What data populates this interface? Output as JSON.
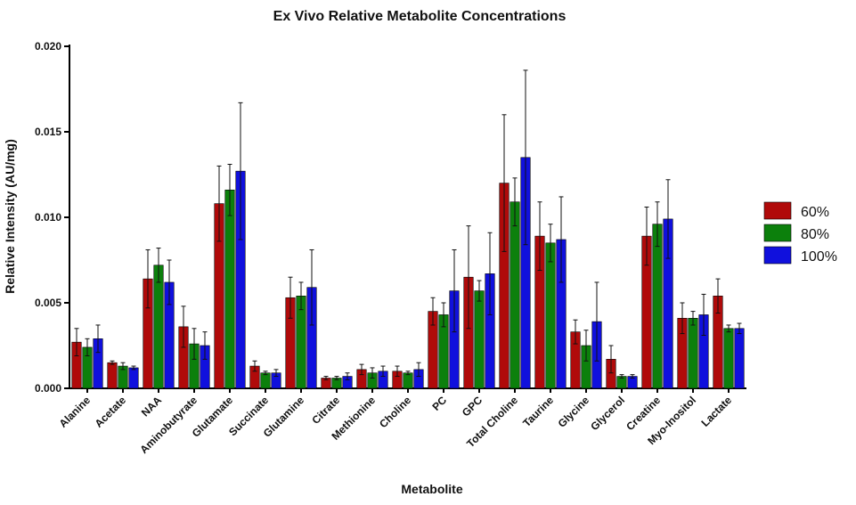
{
  "chart_data": {
    "type": "bar",
    "title": "Ex Vivo Relative Metabolite Concentrations",
    "xlabel": "Metabolite",
    "ylabel": "Relative Intensity (AU/mg)",
    "ylim": [
      0,
      0.02
    ],
    "yticks": [
      "0.000",
      "0.005",
      "0.010",
      "0.015",
      "0.020"
    ],
    "ytick_values": [
      0,
      0.005,
      0.01,
      0.015,
      0.02
    ],
    "categories": [
      "Alanine",
      "Acetate",
      "NAA",
      "Aminobutyrate",
      "Glutamate",
      "Succinate",
      "Glutamine",
      "Citrate",
      "Methionine",
      "Choline",
      "PC",
      "GPC",
      "Total Choline",
      "Taurine",
      "Glycine",
      "Glycerol",
      "Creatine",
      "Myo-Inositol",
      "Lactate"
    ],
    "series": [
      {
        "name": "60%",
        "color": "#b00a0a",
        "values": [
          0.0027,
          0.0015,
          0.0064,
          0.0036,
          0.0108,
          0.0013,
          0.0053,
          0.0006,
          0.0011,
          0.001,
          0.0045,
          0.0065,
          0.012,
          0.0089,
          0.0033,
          0.0017,
          0.0089,
          0.0041,
          0.0054
        ],
        "errors": [
          0.0008,
          0.0001,
          0.0017,
          0.0012,
          0.0022,
          0.0003,
          0.0012,
          0.0001,
          0.0003,
          0.0003,
          0.0008,
          0.003,
          0.004,
          0.002,
          0.0007,
          0.0008,
          0.0017,
          0.0009,
          0.001
        ]
      },
      {
        "name": "80%",
        "color": "#0c800c",
        "values": [
          0.0024,
          0.0013,
          0.0072,
          0.0026,
          0.0116,
          0.0009,
          0.0054,
          0.0006,
          0.0009,
          0.0009,
          0.0043,
          0.0057,
          0.0109,
          0.0085,
          0.0025,
          0.0007,
          0.0096,
          0.0041,
          0.0035
        ],
        "errors": [
          0.0005,
          0.0002,
          0.001,
          0.0009,
          0.0015,
          0.0001,
          0.0008,
          0.0001,
          0.0003,
          0.0001,
          0.0007,
          0.0006,
          0.0014,
          0.0011,
          0.0009,
          0.0001,
          0.0013,
          0.0004,
          0.0002
        ]
      },
      {
        "name": "100%",
        "color": "#1010dd",
        "values": [
          0.0029,
          0.0012,
          0.0062,
          0.0025,
          0.0127,
          0.0009,
          0.0059,
          0.0007,
          0.001,
          0.0011,
          0.0057,
          0.0067,
          0.0135,
          0.0087,
          0.0039,
          0.0007,
          0.0099,
          0.0043,
          0.0035
        ],
        "errors": [
          0.0008,
          0.0001,
          0.0013,
          0.0008,
          0.004,
          0.0002,
          0.0022,
          0.0002,
          0.0003,
          0.0004,
          0.0024,
          0.0024,
          0.0051,
          0.0025,
          0.0023,
          0.0001,
          0.0023,
          0.0012,
          0.0003
        ]
      }
    ],
    "legend_position": "right",
    "grid": false
  }
}
